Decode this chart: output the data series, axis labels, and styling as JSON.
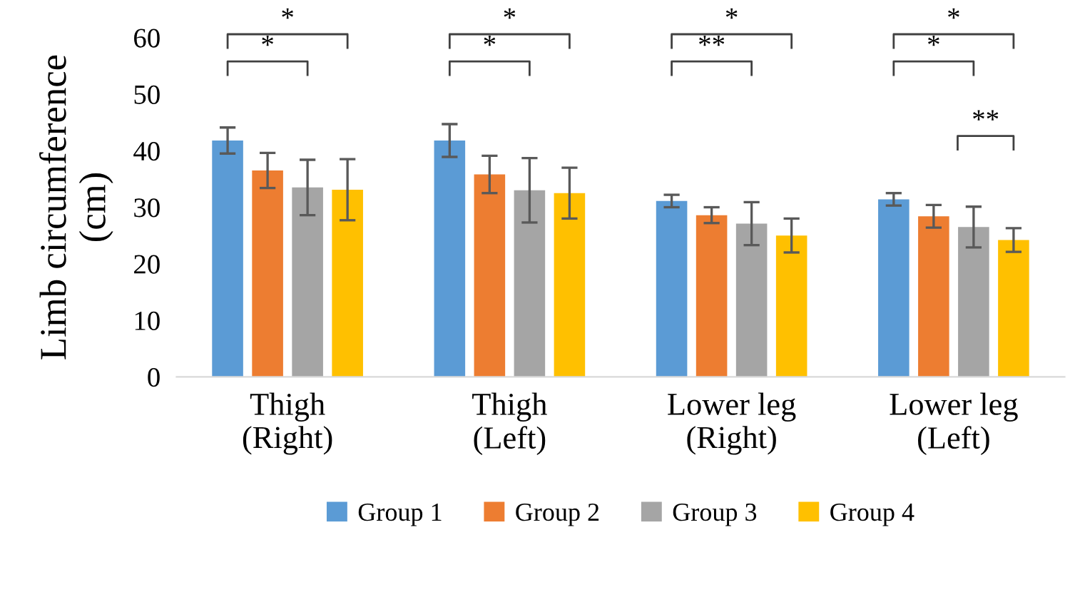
{
  "chart_data": {
    "type": "bar",
    "ylabel": "Limb circumference\n(cm)",
    "categories": [
      "Thigh\n(Right)",
      "Thigh\n(Left)",
      "Lower leg\n(Right)",
      "Lower leg\n(Left)"
    ],
    "series": [
      {
        "name": "Group 1",
        "color": "#5b9bd5",
        "values": [
          41.8,
          41.8,
          31.1,
          31.4
        ],
        "errors": [
          2.3,
          2.9,
          1.1,
          1.1
        ]
      },
      {
        "name": "Group 2",
        "color": "#ed7d31",
        "values": [
          36.5,
          35.8,
          28.6,
          28.4
        ],
        "errors": [
          3.1,
          3.3,
          1.4,
          2.0
        ]
      },
      {
        "name": "Group 3",
        "color": "#a5a5a5",
        "values": [
          33.5,
          33.0,
          27.1,
          26.5
        ],
        "errors": [
          4.9,
          5.7,
          3.8,
          3.6
        ]
      },
      {
        "name": "Group 4",
        "color": "#ffc000",
        "values": [
          33.1,
          32.5,
          25.0,
          24.2
        ],
        "errors": [
          5.4,
          4.5,
          3.0,
          2.1
        ]
      }
    ],
    "ylim": [
      0,
      60
    ],
    "yticks": [
      0,
      10,
      20,
      30,
      40,
      50,
      60
    ],
    "grid": false,
    "legend": "bottom",
    "annotations": [
      "*",
      "*",
      "*",
      "*",
      "*",
      "**",
      "*",
      "*",
      "**"
    ]
  }
}
